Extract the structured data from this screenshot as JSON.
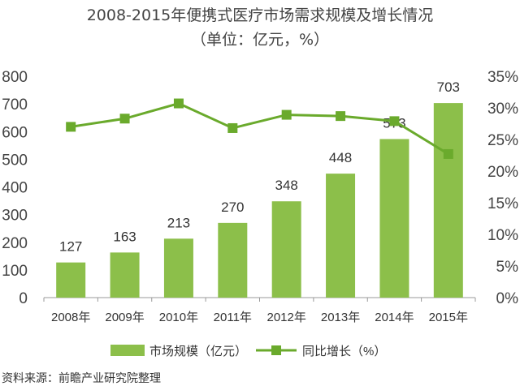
{
  "chart_data": {
    "type": "bar",
    "title": "2008-2015年便携式医疗市场需求规模及增长情况",
    "subtitle": "（单位：亿元，%）",
    "categories": [
      "2008年",
      "2009年",
      "2010年",
      "2011年",
      "2012年",
      "2013年",
      "2014年",
      "2015年"
    ],
    "series": [
      {
        "name": "市场规模（亿元）",
        "type": "bar",
        "axis": "left",
        "color": "#8cbf4a",
        "values": [
          127,
          163,
          213,
          270,
          348,
          448,
          573,
          703
        ]
      },
      {
        "name": "同比增长（%）",
        "type": "line",
        "axis": "right",
        "color": "#6aaa2c",
        "values": [
          27.0,
          28.3,
          30.7,
          26.8,
          28.9,
          28.7,
          27.9,
          22.7
        ]
      }
    ],
    "left_ylim": [
      0,
      800
    ],
    "left_ticks": [
      "0",
      "100",
      "200",
      "300",
      "400",
      "500",
      "600",
      "700",
      "800"
    ],
    "right_ylim": [
      0,
      35
    ],
    "right_ticks": [
      "0%",
      "5%",
      "10%",
      "15%",
      "20%",
      "25%",
      "30%",
      "35%"
    ],
    "grid": false,
    "legend": "bottom"
  },
  "source": "资料来源：前瞻产业研究院整理"
}
